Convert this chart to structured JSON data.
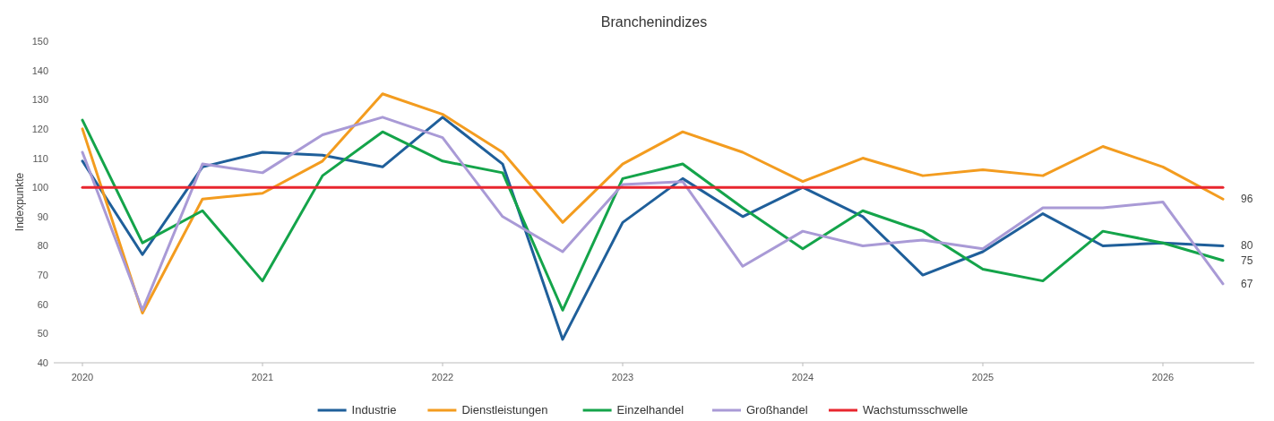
{
  "chart_data": {
    "type": "line",
    "title": "Branchenindizes",
    "ylabel": "Indexpunkte",
    "categories": [
      "2020",
      null,
      null,
      "2021",
      null,
      null,
      "2022",
      null,
      null,
      "2023",
      null,
      null,
      "2024",
      null,
      null,
      "2025",
      null,
      null,
      "2026",
      null
    ],
    "ylim": [
      40,
      150
    ],
    "yticks": [
      40,
      50,
      60,
      70,
      80,
      90,
      100,
      110,
      120,
      130,
      140,
      150
    ],
    "grid": false,
    "legend": "bottom",
    "line_style": "solid",
    "marker": "none",
    "series": [
      {
        "name": "Industrie",
        "color": "#1f5f9a",
        "values": [
          109,
          77,
          107,
          112,
          111,
          107,
          124,
          108,
          48,
          88,
          103,
          90,
          100,
          90,
          70,
          78,
          91,
          80,
          81,
          80
        ],
        "value_labels": [
          null,
          null,
          null,
          null,
          null,
          null,
          null,
          null,
          null,
          null,
          null,
          null,
          null,
          null,
          null,
          null,
          null,
          null,
          null,
          "80"
        ]
      },
      {
        "name": "Dienstleistungen",
        "color": "#f39c1f",
        "values": [
          120,
          57,
          96,
          98,
          109,
          132,
          125,
          112,
          88,
          108,
          119,
          112,
          102,
          110,
          104,
          106,
          104,
          114,
          107,
          96
        ],
        "value_labels": [
          null,
          null,
          null,
          null,
          null,
          null,
          null,
          null,
          null,
          null,
          null,
          null,
          null,
          null,
          null,
          null,
          null,
          null,
          null,
          "96"
        ]
      },
      {
        "name": "Einzelhandel",
        "color": "#14a44a",
        "values": [
          123,
          81,
          92,
          68,
          104,
          119,
          109,
          105,
          58,
          103,
          108,
          93,
          79,
          92,
          85,
          72,
          68,
          85,
          81,
          75
        ],
        "value_labels": [
          null,
          null,
          null,
          null,
          null,
          null,
          null,
          null,
          null,
          null,
          null,
          null,
          null,
          null,
          null,
          null,
          null,
          null,
          null,
          "75"
        ]
      },
      {
        "name": "Großhandel",
        "color": "#a99ad6",
        "values": [
          112,
          58,
          108,
          105,
          118,
          124,
          117,
          90,
          78,
          101,
          102,
          73,
          85,
          80,
          82,
          79,
          93,
          93,
          95,
          67
        ],
        "value_labels": [
          null,
          null,
          null,
          null,
          null,
          null,
          null,
          null,
          null,
          null,
          null,
          null,
          null,
          null,
          null,
          null,
          null,
          null,
          null,
          "67"
        ]
      },
      {
        "name": "Wachstumsschwelle",
        "color": "#e8262e",
        "values": [
          100,
          100,
          100,
          100,
          100,
          100,
          100,
          100,
          100,
          100,
          100,
          100,
          100,
          100,
          100,
          100,
          100,
          100,
          100,
          100
        ]
      }
    ]
  }
}
